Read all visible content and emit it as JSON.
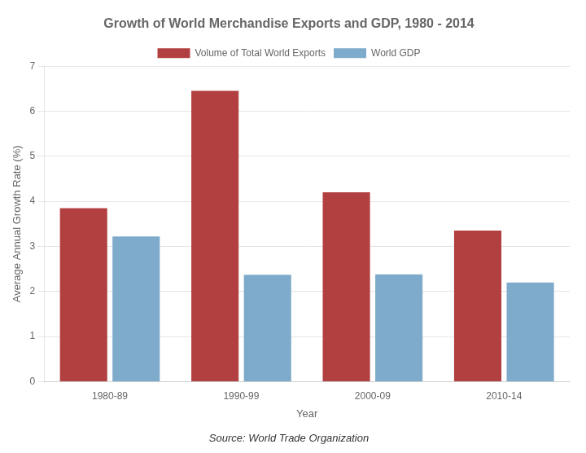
{
  "chart_data": {
    "type": "bar",
    "title": "Growth of World Merchandise Exports and GDP, 1980 - 2014",
    "xlabel": "Year",
    "ylabel": "Average Annual Growth Rate (%)",
    "categories": [
      "1980-89",
      "1990-99",
      "2000-09",
      "2010-14"
    ],
    "series": [
      {
        "name": "Volume of Total World Exports",
        "color": "#b34040",
        "values": [
          3.85,
          6.45,
          4.2,
          3.35
        ]
      },
      {
        "name": "World GDP",
        "color": "#7eaacb",
        "values": [
          3.22,
          2.37,
          2.38,
          2.2
        ]
      }
    ],
    "ylim": [
      0,
      7
    ],
    "yticks": [
      0,
      1,
      2,
      3,
      4,
      5,
      6,
      7
    ],
    "grid": true,
    "legend": "top",
    "annotations": [
      "Source: World Trade Organization"
    ]
  }
}
